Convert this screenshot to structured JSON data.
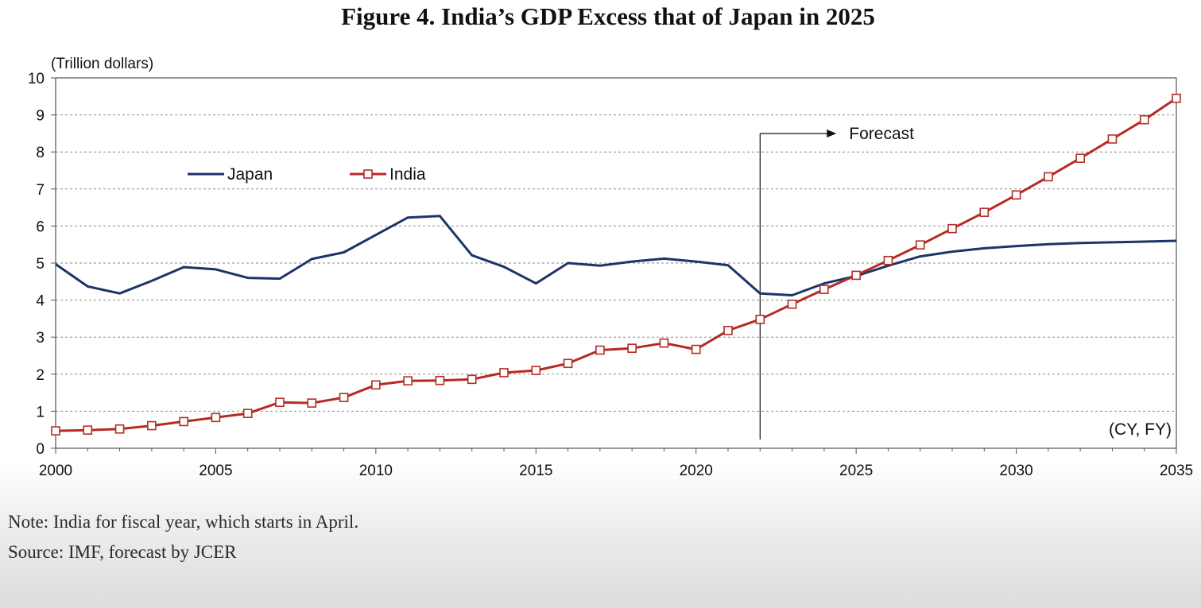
{
  "figure": {
    "title": "Figure 4. India’s GDP Excess that of Japan in 2025",
    "y_unit_label": "(Trillion dollars)",
    "x_unit_label": "(CY, FY)",
    "forecast_label": "Forecast",
    "note": "Note: India for fiscal year, which starts in April.",
    "source": "Source: IMF, forecast by JCER"
  },
  "chart_data": {
    "type": "line",
    "title": "Figure 4. India’s GDP Excess that of Japan in 2025",
    "xlabel": "(CY, FY)",
    "ylabel": "(Trillion dollars)",
    "xlim": [
      2000,
      2035
    ],
    "ylim": [
      0,
      10
    ],
    "x_ticks": [
      2000,
      2005,
      2010,
      2015,
      2020,
      2025,
      2030,
      2035
    ],
    "y_ticks": [
      0,
      1,
      2,
      3,
      4,
      5,
      6,
      7,
      8,
      9,
      10
    ],
    "grid": true,
    "legend_position": "upper-left",
    "forecast_start": 2022,
    "series": [
      {
        "name": "Japan",
        "color": "#1c3566",
        "marker": "none",
        "x": [
          2000,
          2001,
          2002,
          2003,
          2004,
          2005,
          2006,
          2007,
          2008,
          2009,
          2010,
          2011,
          2012,
          2013,
          2014,
          2015,
          2016,
          2017,
          2018,
          2019,
          2020,
          2021,
          2022,
          2023,
          2024,
          2025,
          2026,
          2027,
          2028,
          2029,
          2030,
          2031,
          2032,
          2033,
          2034,
          2035
        ],
        "values": [
          4.97,
          4.37,
          4.18,
          4.52,
          4.89,
          4.83,
          4.6,
          4.58,
          5.11,
          5.29,
          5.76,
          6.23,
          6.27,
          5.21,
          4.9,
          4.45,
          5.0,
          4.93,
          5.04,
          5.12,
          5.04,
          4.94,
          4.18,
          4.13,
          4.45,
          4.65,
          4.93,
          5.18,
          5.31,
          5.4,
          5.46,
          5.51,
          5.54,
          5.56,
          5.58,
          5.6
        ]
      },
      {
        "name": "India",
        "color": "#b52b24",
        "marker": "open-square",
        "x": [
          2000,
          2001,
          2002,
          2003,
          2004,
          2005,
          2006,
          2007,
          2008,
          2009,
          2010,
          2011,
          2012,
          2013,
          2014,
          2015,
          2016,
          2017,
          2018,
          2019,
          2020,
          2021,
          2022,
          2023,
          2024,
          2025,
          2026,
          2027,
          2028,
          2029,
          2030,
          2031,
          2032,
          2033,
          2034,
          2035
        ],
        "values": [
          0.47,
          0.49,
          0.52,
          0.61,
          0.72,
          0.83,
          0.94,
          1.24,
          1.22,
          1.37,
          1.71,
          1.82,
          1.83,
          1.86,
          2.04,
          2.1,
          2.29,
          2.65,
          2.7,
          2.84,
          2.67,
          3.18,
          3.48,
          3.89,
          4.29,
          4.67,
          5.07,
          5.49,
          5.93,
          6.37,
          6.84,
          7.33,
          7.83,
          8.35,
          8.87,
          9.45
        ]
      }
    ]
  }
}
